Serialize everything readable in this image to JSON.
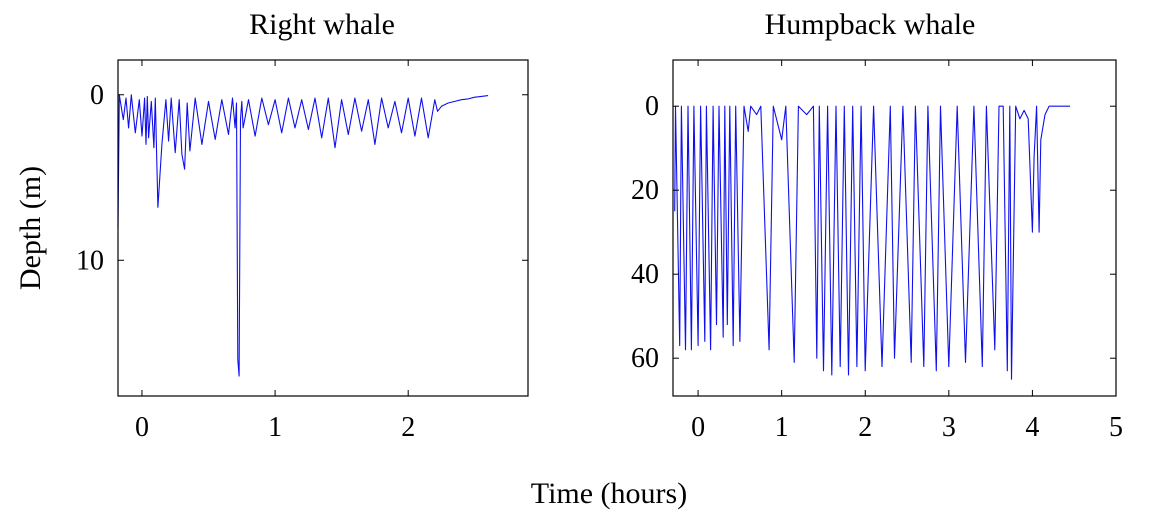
{
  "figure": {
    "xlabel": "Time (hours)",
    "ylabel": "Depth (m)"
  },
  "chart_data": [
    {
      "type": "line",
      "title": "Right whale",
      "xlabel": "Time (hours)",
      "ylabel": "Depth (m)",
      "xlim": [
        -0.18,
        2.9
      ],
      "ylim": [
        -2.1,
        18.2
      ],
      "y_inverted": true,
      "grid": false,
      "xticks": [
        0,
        1,
        2
      ],
      "yticks": [
        0,
        10
      ],
      "color": "#1010ee",
      "x": [
        -0.18,
        -0.17,
        -0.14,
        -0.12,
        -0.1,
        -0.08,
        -0.05,
        -0.02,
        0.0,
        0.02,
        0.03,
        0.04,
        0.05,
        0.07,
        0.09,
        0.1,
        0.12,
        0.15,
        0.18,
        0.2,
        0.22,
        0.25,
        0.28,
        0.3,
        0.32,
        0.34,
        0.36,
        0.4,
        0.45,
        0.5,
        0.55,
        0.6,
        0.65,
        0.68,
        0.7,
        0.71,
        0.72,
        0.73,
        0.74,
        0.75,
        0.76,
        0.8,
        0.85,
        0.9,
        0.95,
        1.0,
        1.05,
        1.1,
        1.15,
        1.2,
        1.25,
        1.3,
        1.35,
        1.4,
        1.45,
        1.5,
        1.55,
        1.6,
        1.65,
        1.7,
        1.75,
        1.8,
        1.85,
        1.9,
        1.95,
        2.0,
        2.05,
        2.1,
        2.15,
        2.2,
        2.22,
        2.25,
        2.3,
        2.35,
        2.4,
        2.45,
        2.5,
        2.55,
        2.6
      ],
      "y": [
        8.0,
        0.0,
        1.5,
        0.2,
        2.0,
        0.0,
        2.3,
        0.3,
        2.5,
        0.2,
        3.0,
        0.1,
        2.6,
        0.4,
        3.2,
        0.2,
        6.8,
        3.0,
        0.3,
        2.8,
        0.2,
        3.5,
        0.3,
        3.6,
        4.5,
        0.5,
        3.4,
        0.2,
        3.0,
        0.4,
        2.7,
        0.3,
        2.4,
        0.2,
        2.0,
        0.5,
        16.0,
        17.0,
        1.5,
        0.4,
        2.0,
        0.3,
        2.5,
        0.2,
        1.8,
        0.3,
        2.3,
        0.2,
        2.0,
        0.3,
        2.1,
        0.2,
        2.6,
        0.2,
        3.2,
        0.3,
        2.4,
        0.2,
        2.2,
        0.3,
        3.0,
        0.2,
        2.0,
        0.4,
        2.3,
        0.2,
        2.5,
        0.2,
        2.6,
        0.3,
        1.0,
        0.7,
        0.5,
        0.4,
        0.3,
        0.25,
        0.15,
        0.1,
        0.05
      ]
    },
    {
      "type": "line",
      "title": "Humpback whale",
      "xlabel": "Time (hours)",
      "ylabel": "Depth (m)",
      "xlim": [
        -0.3,
        5.0
      ],
      "ylim": [
        -11,
        69
      ],
      "y_inverted": true,
      "grid": false,
      "xticks": [
        0,
        1,
        2,
        3,
        4,
        5
      ],
      "yticks": [
        0,
        20,
        40,
        60
      ],
      "color": "#1010ee",
      "x": [
        -0.28,
        -0.27,
        -0.22,
        -0.2,
        -0.15,
        -0.12,
        -0.08,
        -0.05,
        0.0,
        0.03,
        0.08,
        0.1,
        0.15,
        0.18,
        0.22,
        0.25,
        0.3,
        0.32,
        0.35,
        0.38,
        0.42,
        0.45,
        0.5,
        0.55,
        0.6,
        0.63,
        0.7,
        0.75,
        0.85,
        0.9,
        1.0,
        1.05,
        1.15,
        1.2,
        1.3,
        1.38,
        1.42,
        1.45,
        1.5,
        1.55,
        1.6,
        1.65,
        1.7,
        1.75,
        1.8,
        1.85,
        1.9,
        1.95,
        2.0,
        2.1,
        2.2,
        2.3,
        2.35,
        2.45,
        2.55,
        2.6,
        2.7,
        2.75,
        2.85,
        2.9,
        3.0,
        3.1,
        3.2,
        3.3,
        3.4,
        3.45,
        3.55,
        3.6,
        3.65,
        3.7,
        3.73,
        3.75,
        3.8,
        3.85,
        3.9,
        3.95,
        4.0,
        4.02,
        4.05,
        4.08,
        4.1,
        4.15,
        4.2,
        4.3,
        4.4,
        4.45
      ],
      "y": [
        25,
        0,
        57,
        0,
        58,
        0,
        58,
        0,
        57,
        0,
        56,
        0,
        58,
        0,
        52,
        0,
        55,
        0,
        52,
        0,
        57,
        0,
        56,
        0,
        6,
        0,
        2,
        0,
        58,
        0,
        8,
        0,
        61,
        0,
        2,
        0,
        60,
        0,
        63,
        0,
        64,
        0,
        62,
        0,
        64,
        0,
        62,
        0,
        63,
        0,
        62,
        0,
        60,
        0,
        61,
        0,
        62,
        0,
        63,
        0,
        62,
        0,
        61,
        0,
        62,
        0,
        58,
        0,
        0,
        63,
        0,
        65,
        0,
        3,
        1,
        3,
        30,
        12,
        0,
        30,
        8,
        2,
        0,
        0,
        0,
        0
      ]
    }
  ]
}
